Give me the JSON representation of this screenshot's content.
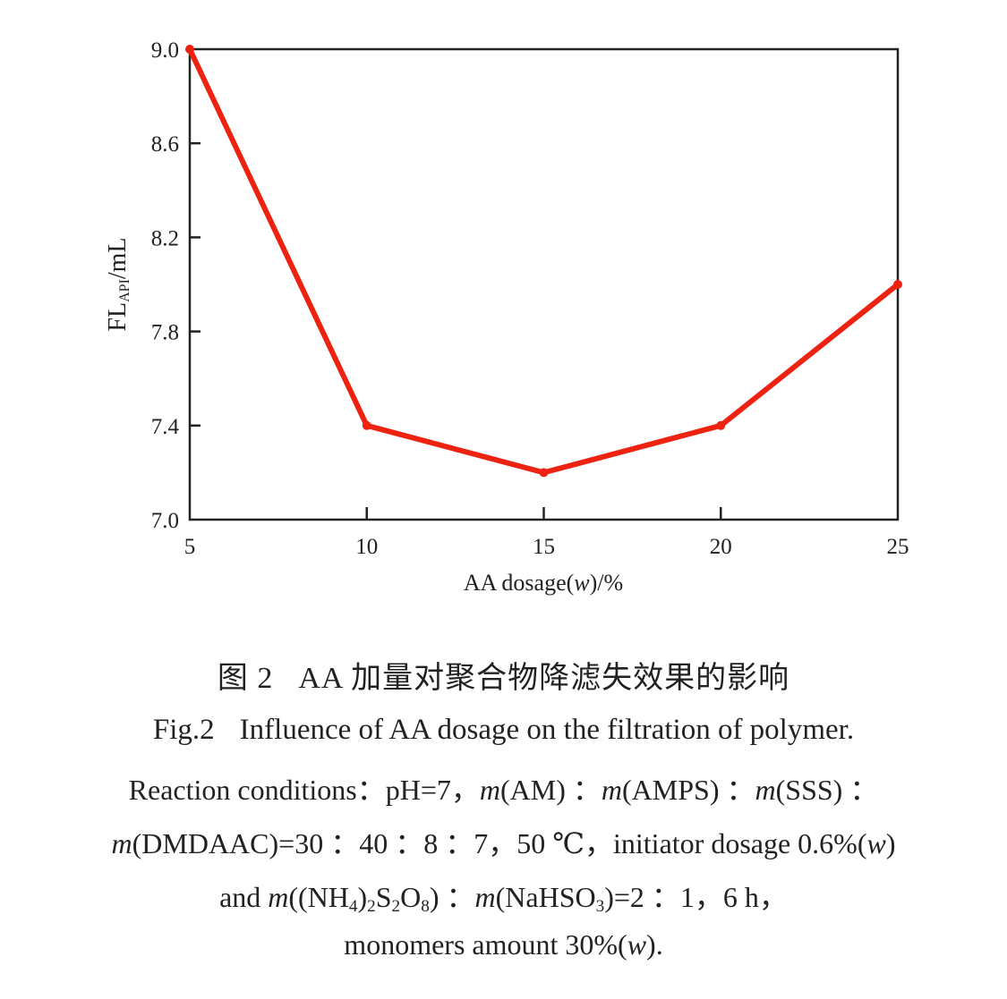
{
  "chart_data": {
    "type": "line",
    "title": "",
    "xlabel": "AA dosage(w)/%",
    "ylabel": "FL_API/mL",
    "x": [
      5,
      10,
      15,
      20,
      25
    ],
    "series": [
      {
        "name": "FL_API",
        "color": "#ee2211",
        "values": [
          9.0,
          7.4,
          7.2,
          7.4,
          8.0
        ]
      }
    ],
    "xlim": [
      5,
      25
    ],
    "ylim": [
      7.0,
      9.0
    ],
    "xticks": [
      5,
      10,
      15,
      20,
      25
    ],
    "yticks": [
      7.0,
      7.4,
      7.8,
      8.2,
      8.6,
      9.0
    ],
    "xtick_labels": [
      "5",
      "10",
      "15",
      "20",
      "25"
    ],
    "ytick_labels": [
      "7.0",
      "7.4",
      "7.8",
      "8.2",
      "8.6",
      "9.0"
    ],
    "grid": false,
    "legend": null
  },
  "axes": {
    "xlabel_main": "AA dosage(",
    "xlabel_italic": "w",
    "xlabel_tail": ")/%",
    "ylabel_main": "FL",
    "ylabel_sub": "API",
    "ylabel_tail": "/mL"
  },
  "caption": {
    "cn_label": "图 2",
    "cn_text": "AA 加量对聚合物降滤失效果的影响",
    "en_label": "Fig.2",
    "en_text": "Influence of AA dosage on the filtration of polymer.",
    "line1": {
      "a": "Reaction conditions：pH=7，",
      "m": "m",
      "b": "(AM) ：",
      "c": "(AMPS) ：",
      "d": "(SSS) ："
    },
    "line2": {
      "m": "m",
      "a": "(DMDAAC)=30 ：40 ：8 ：7，50 ℃，initiator dosage 0.6%(",
      "w": "w",
      "b": ")"
    },
    "line3": {
      "a": "and ",
      "m": "m",
      "b": "((NH",
      "s4": "4",
      "c": ")",
      "s2a": "2",
      "d": "S",
      "s2b": "2",
      "e": "O",
      "s8": "8",
      "f": ") ：",
      "g": "(NaHSO",
      "s3": "3",
      "h": ")=2 ：1，6 h，"
    },
    "line4": {
      "a": "monomers amount 30%(",
      "w": "w",
      "b": ")."
    }
  }
}
